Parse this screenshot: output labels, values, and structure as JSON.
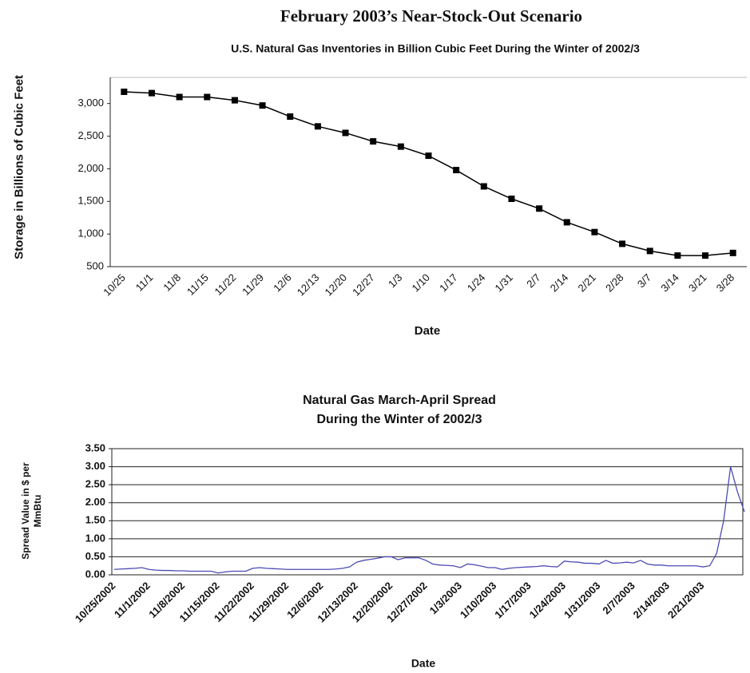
{
  "title": "February 2003’s Near-Stock-Out Scenario",
  "chart_data": [
    {
      "type": "line",
      "title": "U.S. Natural Gas Inventories in Billion Cubic Feet During the Winter of 2002/3",
      "xlabel": "Date",
      "ylabel": "Storage in Billions of Cubic Feet",
      "categories": [
        "10/25",
        "11/1",
        "11/8",
        "11/15",
        "11/22",
        "11/29",
        "12/6",
        "12/13",
        "12/20",
        "12/27",
        "1/3",
        "1/10",
        "1/17",
        "1/24",
        "1/31",
        "2/7",
        "2/14",
        "2/21",
        "2/28",
        "3/7",
        "3/14",
        "3/21",
        "3/28"
      ],
      "series": [
        {
          "name": "Storage",
          "color": "#000000",
          "values": [
            3180,
            3160,
            3100,
            3100,
            3050,
            2970,
            2800,
            2650,
            2550,
            2420,
            2340,
            2200,
            1980,
            1730,
            1540,
            1390,
            1180,
            1030,
            850,
            740,
            670,
            670,
            710
          ]
        }
      ],
      "ylim": [
        500,
        3400
      ],
      "yticks": [
        {
          "value": 500,
          "label": "500"
        },
        {
          "value": 1000,
          "label": "1,000"
        },
        {
          "value": 1500,
          "label": "1,500"
        },
        {
          "value": 2000,
          "label": "2,000"
        },
        {
          "value": 2500,
          "label": "2,500"
        },
        {
          "value": 3000,
          "label": "3,000"
        }
      ],
      "grid": false
    },
    {
      "type": "line",
      "title": "Natural Gas March-April Spread",
      "subtitle": "During the Winter of 2002/3",
      "xlabel": "Date",
      "ylabel": "Spread Value in $ per MmBtu",
      "categories": [
        "10/25/2002",
        null,
        null,
        null,
        null,
        "11/1/2002",
        null,
        null,
        null,
        null,
        "11/8/2002",
        null,
        null,
        null,
        null,
        "11/15/2002",
        null,
        null,
        null,
        null,
        "11/22/2002",
        null,
        null,
        null,
        null,
        "11/29/2002",
        null,
        null,
        null,
        null,
        "12/6/2002",
        null,
        null,
        null,
        null,
        "12/13/2002",
        null,
        null,
        null,
        null,
        "12/20/2002",
        null,
        null,
        null,
        null,
        "12/27/2002",
        null,
        null,
        null,
        null,
        "1/3/2003",
        null,
        null,
        null,
        null,
        "1/10/2003",
        null,
        null,
        null,
        null,
        "1/17/2003",
        null,
        null,
        null,
        null,
        "1/24/2003",
        null,
        null,
        null,
        null,
        "1/31/2003",
        null,
        null,
        null,
        null,
        "2/7/2003",
        null,
        null,
        null,
        null,
        "2/14/2003",
        null,
        null,
        null,
        null,
        "2/21/2003",
        null,
        null,
        null,
        null,
        null,
        null
      ],
      "series": [
        {
          "name": "Spread",
          "color": "#4b4bb4",
          "values": [
            0.15,
            0.16,
            0.17,
            0.18,
            0.2,
            0.15,
            0.13,
            0.12,
            0.12,
            0.11,
            0.11,
            0.1,
            0.1,
            0.1,
            0.1,
            0.05,
            0.08,
            0.1,
            0.1,
            0.1,
            0.18,
            0.2,
            0.18,
            0.17,
            0.16,
            0.15,
            0.15,
            0.15,
            0.15,
            0.15,
            0.15,
            0.15,
            0.16,
            0.18,
            0.22,
            0.35,
            0.4,
            0.43,
            0.46,
            0.5,
            0.5,
            0.42,
            0.47,
            0.47,
            0.47,
            0.4,
            0.3,
            0.27,
            0.26,
            0.25,
            0.2,
            0.3,
            0.28,
            0.24,
            0.2,
            0.2,
            0.15,
            0.18,
            0.2,
            0.21,
            0.22,
            0.23,
            0.25,
            0.23,
            0.22,
            0.38,
            0.36,
            0.35,
            0.32,
            0.32,
            0.3,
            0.4,
            0.32,
            0.33,
            0.35,
            0.33,
            0.4,
            0.3,
            0.27,
            0.27,
            0.25,
            0.25,
            0.25,
            0.25,
            0.25,
            0.22,
            0.25,
            0.6,
            1.5,
            3.0,
            2.3,
            1.75
          ]
        }
      ],
      "ylim": [
        0,
        3.5
      ],
      "yticks": [
        {
          "value": 0,
          "label": "0.00"
        },
        {
          "value": 0.5,
          "label": "0.50"
        },
        {
          "value": 1,
          "label": "1.00"
        },
        {
          "value": 1.5,
          "label": "1.50"
        },
        {
          "value": 2,
          "label": "2.00"
        },
        {
          "value": 2.5,
          "label": "2.50"
        },
        {
          "value": 3,
          "label": "3.00"
        },
        {
          "value": 3.5,
          "label": "3.50"
        }
      ],
      "grid": true
    }
  ]
}
